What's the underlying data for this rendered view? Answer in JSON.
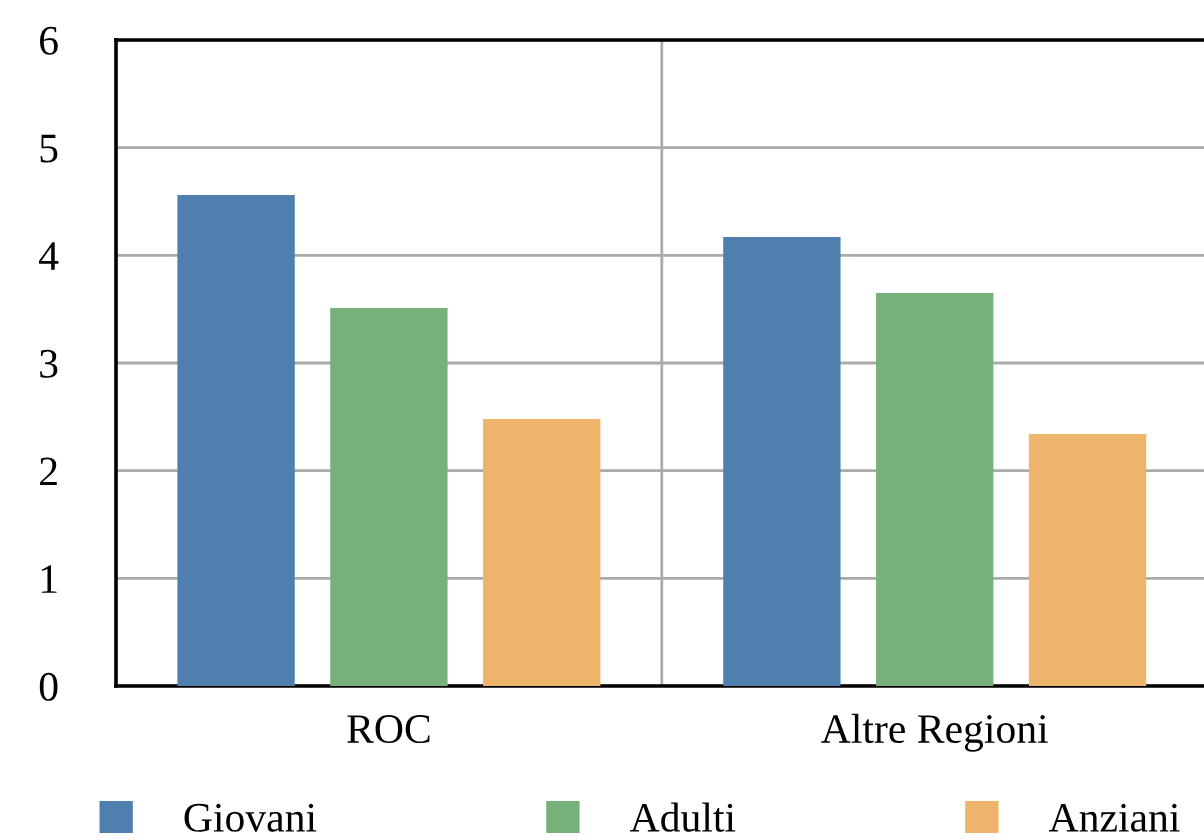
{
  "chart_data": {
    "type": "bar",
    "categories": [
      "ROC",
      "Altre Regioni"
    ],
    "series": [
      {
        "name": "Giovani",
        "color": "#4e7fae",
        "values": [
          4.56,
          4.17
        ]
      },
      {
        "name": "Adulti",
        "color": "#76b07b",
        "values": [
          3.51,
          3.65
        ]
      },
      {
        "name": "Anziani",
        "color": "#efb46b",
        "values": [
          2.48,
          2.34
        ]
      }
    ],
    "ylim": [
      0,
      6
    ],
    "yticks": [
      0,
      1,
      2,
      3,
      4,
      5,
      6
    ],
    "grid": true,
    "legend": "bottom"
  }
}
